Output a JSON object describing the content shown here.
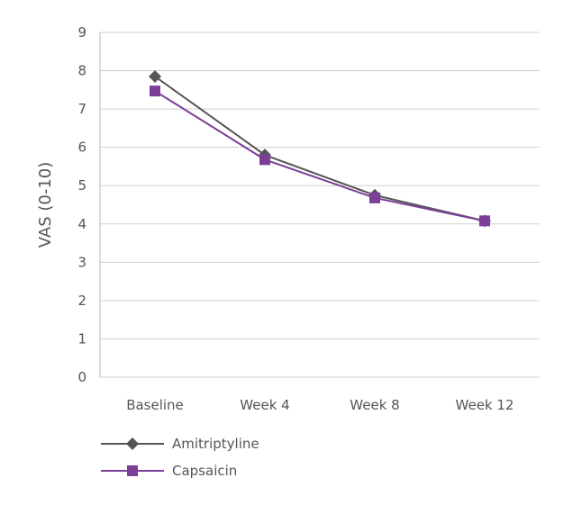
{
  "chart_data": {
    "type": "line",
    "title": "",
    "xlabel": "",
    "ylabel": "VAS (0-10)",
    "categories": [
      "Baseline",
      "Week 4",
      "Week 8",
      "Week 12"
    ],
    "ylim": [
      0,
      9
    ],
    "yticks": [
      "0",
      "1",
      "2",
      "3",
      "4",
      "5",
      "6",
      "7",
      "8",
      "9"
    ],
    "grid": true,
    "legend_position": "bottom-left",
    "series": [
      {
        "name": "Amitriptyline",
        "values": [
          7.85,
          5.8,
          4.75,
          4.08
        ],
        "color": "#555555",
        "marker": "diamond"
      },
      {
        "name": "Capsaicin",
        "values": [
          7.47,
          5.68,
          4.68,
          4.08
        ],
        "color": "#7b3f98",
        "marker": "square"
      }
    ]
  }
}
